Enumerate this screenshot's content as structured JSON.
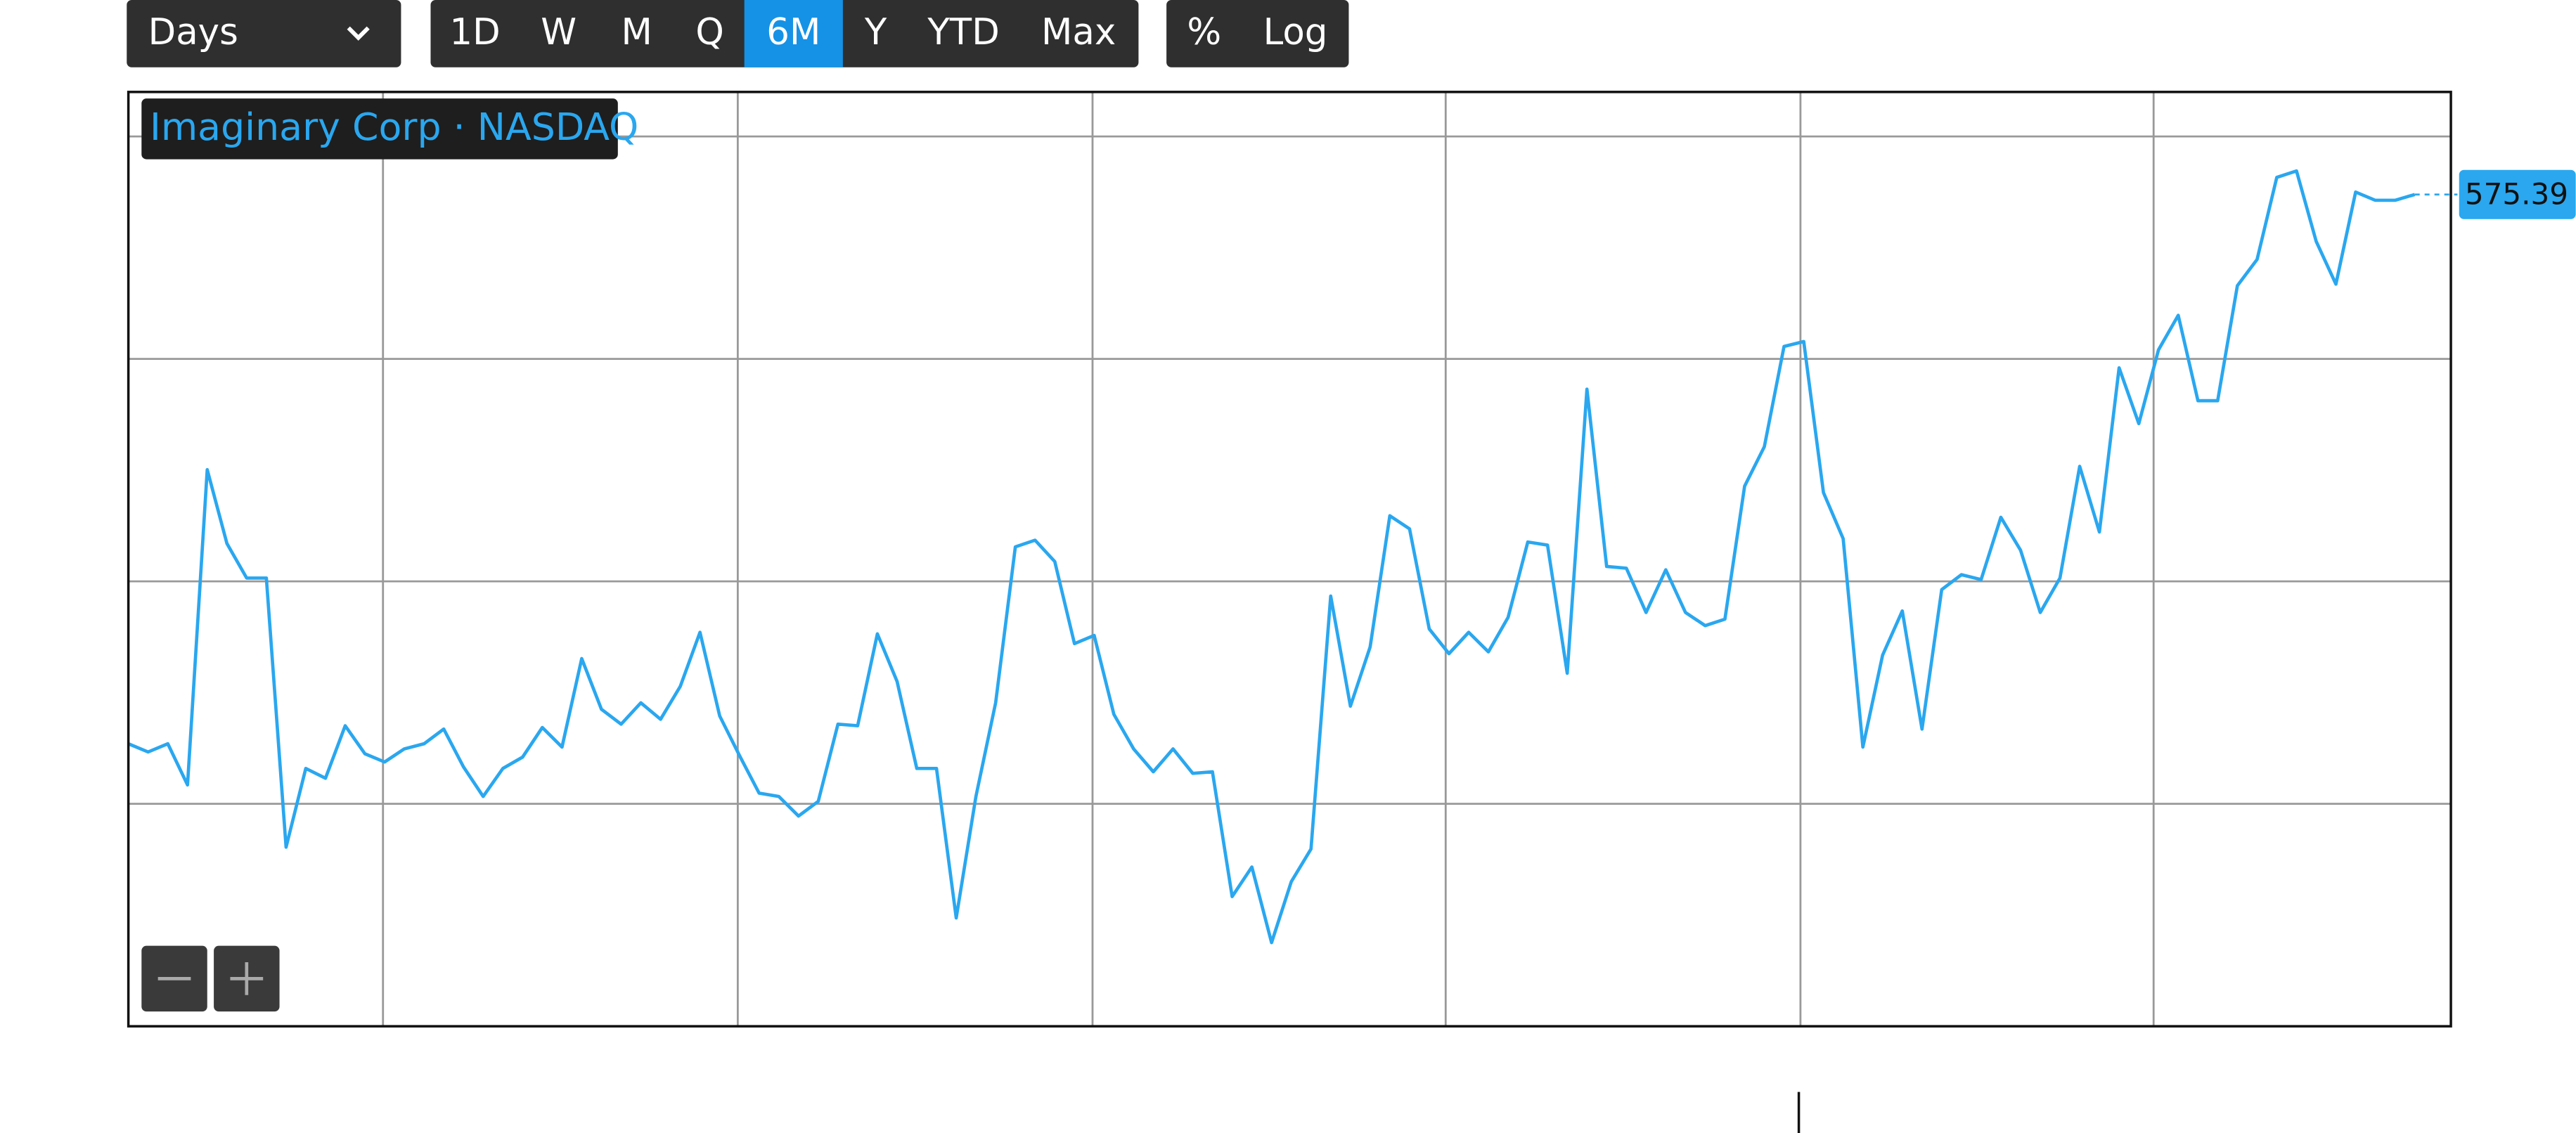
{
  "controls": {
    "interval": "Days",
    "ranges": [
      "1D",
      "W",
      "M",
      "Q",
      "6M",
      "Y",
      "YTD",
      "Max"
    ],
    "active_range": "6M",
    "scales": [
      "%",
      "Log"
    ]
  },
  "chart_data": {
    "type": "line",
    "series": [
      {
        "name": "Imaginary Corp · NASDAQ",
        "color": "#2aa7ef",
        "values": [
          550.7,
          550.33,
          550.7,
          548.85,
          563.02,
          559.7,
          558.15,
          558.15,
          546.05,
          549.59,
          549.15,
          551.51,
          550.25,
          549.88,
          550.47,
          550.7,
          551.36,
          549.66,
          548.33,
          549.59,
          550.1,
          551.43,
          550.55,
          554.53,
          552.25,
          551.58,
          552.54,
          551.8,
          553.28,
          555.71,
          551.95,
          550.18,
          548.48,
          548.33,
          547.45,
          548.11,
          551.58,
          551.51,
          555.64,
          553.5,
          549.59,
          549.59,
          542.87,
          548.33,
          552.54,
          559.55,
          559.85,
          558.89,
          555.2,
          555.57,
          552.02,
          550.47,
          549.44,
          550.47,
          549.37,
          549.44,
          543.83,
          545.16,
          541.76,
          544.5,
          545.97,
          557.34,
          552.39,
          555.05,
          560.95,
          560.36,
          555.86,
          554.75,
          555.71,
          554.83,
          556.38,
          559.77,
          559.63,
          553.87,
          566.64,
          558.67,
          558.59,
          556.6,
          558.52,
          556.6,
          556.01,
          556.3,
          562.28,
          564.05,
          568.56,
          568.78,
          561.99,
          559.92,
          550.55,
          554.68,
          556.67,
          551.36,
          557.63,
          558.3,
          558.08,
          560.88,
          559.4,
          556.6,
          558.15,
          563.17,
          560.22,
          567.6,
          565.09,
          568.41,
          569.96,
          566.12,
          566.12,
          571.29,
          572.47,
          576.16,
          576.45,
          573.28,
          571.36,
          575.5,
          575.13,
          575.13,
          575.39
        ]
      }
    ],
    "ylim": [
      538,
      580
    ],
    "ygrid": [
      548,
      558,
      568,
      578
    ],
    "grid": true
  }
}
